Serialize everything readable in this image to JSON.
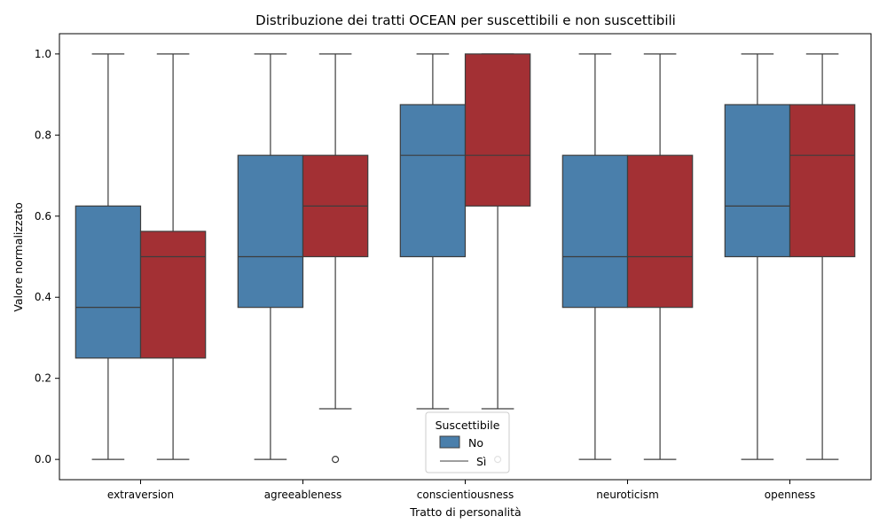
{
  "chart_data": {
    "type": "box",
    "title": "Distribuzione dei tratti OCEAN per suscettibili e non suscettibili",
    "xlabel": "Tratto di personalità",
    "ylabel": "Valore normalizzato",
    "ylim": [
      -0.05,
      1.05
    ],
    "yticks": [
      "0.0",
      "0.2",
      "0.4",
      "0.6",
      "0.8",
      "1.0"
    ],
    "grid": false,
    "categories": [
      "extraversion",
      "agreeableness",
      "conscientiousness",
      "neuroticism",
      "openness"
    ],
    "legend": {
      "title": "Suscettibile",
      "placement": "bottom-center",
      "entries": [
        "No",
        "Sì"
      ]
    },
    "series": [
      {
        "name": "No",
        "color": "#4a7fab",
        "boxes": [
          {
            "whislo": 0.0,
            "q1": 0.25,
            "med": 0.375,
            "q3": 0.625,
            "whishi": 1.0,
            "fliers": []
          },
          {
            "whislo": 0.0,
            "q1": 0.375,
            "med": 0.5,
            "q3": 0.75,
            "whishi": 1.0,
            "fliers": []
          },
          {
            "whislo": 0.125,
            "q1": 0.5,
            "med": 0.75,
            "q3": 0.875,
            "whishi": 1.0,
            "fliers": []
          },
          {
            "whislo": 0.0,
            "q1": 0.375,
            "med": 0.5,
            "q3": 0.75,
            "whishi": 1.0,
            "fliers": []
          },
          {
            "whislo": 0.0,
            "q1": 0.5,
            "med": 0.625,
            "q3": 0.875,
            "whishi": 1.0,
            "fliers": []
          }
        ]
      },
      {
        "name": "Sì",
        "color": "#a33034",
        "boxes": [
          {
            "whislo": 0.0,
            "q1": 0.25,
            "med": 0.5,
            "q3": 0.5625,
            "whishi": 1.0,
            "fliers": []
          },
          {
            "whislo": 0.125,
            "q1": 0.5,
            "med": 0.625,
            "q3": 0.75,
            "whishi": 1.0,
            "fliers": [
              0.0
            ]
          },
          {
            "whislo": 0.125,
            "q1": 0.625,
            "med": 0.75,
            "q3": 1.0,
            "whishi": 1.0,
            "fliers": [
              0.0
            ]
          },
          {
            "whislo": 0.0,
            "q1": 0.375,
            "med": 0.5,
            "q3": 0.75,
            "whishi": 1.0,
            "fliers": []
          },
          {
            "whislo": 0.0,
            "q1": 0.5,
            "med": 0.75,
            "q3": 0.875,
            "whishi": 1.0,
            "fliers": []
          }
        ]
      }
    ]
  }
}
